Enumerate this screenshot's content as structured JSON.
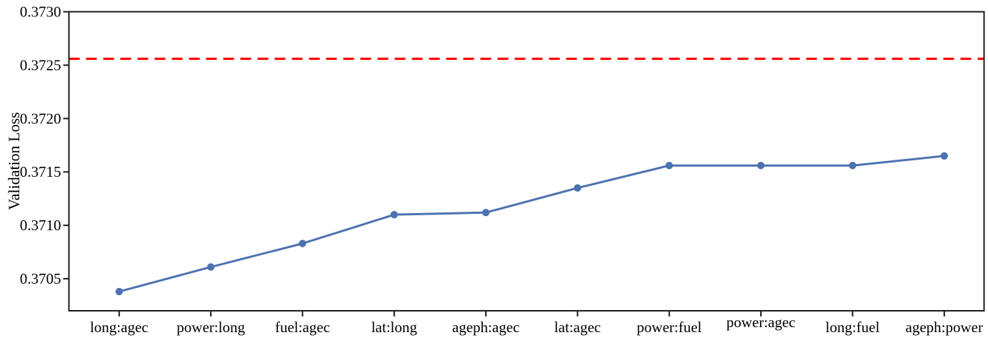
{
  "chart_data": {
    "type": "line",
    "title": "",
    "xlabel": "",
    "ylabel": "Validation Loss",
    "categories": [
      "long:agec",
      "power:long",
      "fuel:agec",
      "lat:long",
      "ageph:agec",
      "lat:agec",
      "power:fuel",
      "power:agec",
      "long:fuel",
      "ageph:power"
    ],
    "series": [
      {
        "name": "Validation Loss",
        "values": [
          0.37038,
          0.37061,
          0.37083,
          0.3711,
          0.37112,
          0.37135,
          0.37156,
          0.37156,
          0.37156,
          0.37165
        ]
      }
    ],
    "baseline": {
      "value": 0.37256,
      "color": "#ff0000",
      "style": "dashed"
    },
    "ytick_labels": [
      "0.3705",
      "0.3710",
      "0.3715",
      "0.3720",
      "0.3725",
      "0.3730"
    ],
    "ylim": [
      0.3702,
      0.373
    ],
    "grid": false,
    "legend": "none",
    "marker": "circle",
    "colors": {
      "line": "#4c72b0",
      "baseline": "#ff0000",
      "axis": "#1a1a1a",
      "background": "#ffffff"
    },
    "layout": {
      "x_label_dy": [
        0,
        0,
        0,
        0,
        0,
        0,
        0,
        -7,
        0,
        0
      ]
    }
  }
}
